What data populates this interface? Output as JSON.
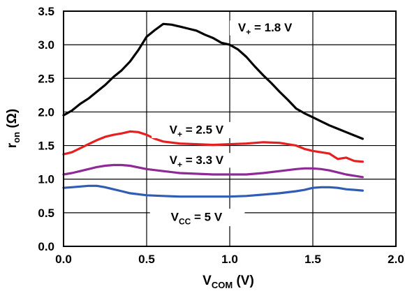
{
  "chart_data": {
    "type": "line",
    "xlabel": {
      "main": "V",
      "sub": "COM",
      "unit": " (V)"
    },
    "ylabel": {
      "main": "r",
      "sub": "on",
      "unit": " (Ω)"
    },
    "xlim": [
      0.0,
      2.0
    ],
    "ylim": [
      0.0,
      3.5
    ],
    "xticks": [
      "0.0",
      "0.5",
      "1.0",
      "1.5",
      "2.0"
    ],
    "yticks": [
      "0.0",
      "0.5",
      "1.0",
      "1.5",
      "2.0",
      "2.5",
      "3.0",
      "3.5"
    ],
    "grid": true,
    "series": [
      {
        "name": "V+ = 1.8 V",
        "color": "#000000",
        "x": [
          0.0,
          0.05,
          0.1,
          0.15,
          0.2,
          0.25,
          0.3,
          0.35,
          0.4,
          0.45,
          0.5,
          0.55,
          0.6,
          0.65,
          0.7,
          0.75,
          0.8,
          0.85,
          0.9,
          0.95,
          1.0,
          1.05,
          1.1,
          1.15,
          1.2,
          1.25,
          1.3,
          1.35,
          1.4,
          1.45,
          1.5,
          1.55,
          1.6,
          1.65,
          1.7,
          1.75,
          1.8
        ],
        "y": [
          1.95,
          2.02,
          2.12,
          2.2,
          2.3,
          2.4,
          2.52,
          2.62,
          2.75,
          2.92,
          3.12,
          3.22,
          3.31,
          3.3,
          3.27,
          3.24,
          3.21,
          3.15,
          3.1,
          3.03,
          3.0,
          2.93,
          2.82,
          2.68,
          2.55,
          2.43,
          2.3,
          2.18,
          2.05,
          1.98,
          1.92,
          1.86,
          1.8,
          1.75,
          1.7,
          1.65,
          1.6
        ]
      },
      {
        "name": "V+ = 2.5 V",
        "color": "#e62020",
        "x": [
          0.0,
          0.05,
          0.1,
          0.15,
          0.2,
          0.25,
          0.3,
          0.35,
          0.4,
          0.45,
          0.5,
          0.55,
          0.6,
          0.7,
          0.8,
          0.9,
          1.0,
          1.1,
          1.2,
          1.3,
          1.4,
          1.45,
          1.5,
          1.55,
          1.6,
          1.65,
          1.7,
          1.75,
          1.8
        ],
        "y": [
          1.37,
          1.4,
          1.46,
          1.52,
          1.58,
          1.63,
          1.66,
          1.68,
          1.71,
          1.7,
          1.66,
          1.6,
          1.56,
          1.53,
          1.52,
          1.51,
          1.52,
          1.53,
          1.55,
          1.54,
          1.5,
          1.45,
          1.42,
          1.4,
          1.38,
          1.3,
          1.32,
          1.27,
          1.26
        ]
      },
      {
        "name": "V+ = 3.3 V",
        "color": "#8e2a96",
        "x": [
          0.0,
          0.05,
          0.1,
          0.15,
          0.2,
          0.25,
          0.3,
          0.35,
          0.4,
          0.5,
          0.6,
          0.7,
          0.8,
          0.9,
          1.0,
          1.1,
          1.2,
          1.3,
          1.4,
          1.45,
          1.5,
          1.55,
          1.6,
          1.65,
          1.7,
          1.75,
          1.8
        ],
        "y": [
          1.07,
          1.09,
          1.12,
          1.15,
          1.18,
          1.2,
          1.21,
          1.21,
          1.2,
          1.15,
          1.12,
          1.09,
          1.08,
          1.07,
          1.07,
          1.07,
          1.09,
          1.12,
          1.15,
          1.16,
          1.16,
          1.15,
          1.13,
          1.1,
          1.07,
          1.05,
          1.03
        ]
      },
      {
        "name": "VCC = 5 V",
        "color": "#2f5db4",
        "x": [
          0.0,
          0.05,
          0.1,
          0.15,
          0.2,
          0.25,
          0.3,
          0.35,
          0.4,
          0.5,
          0.6,
          0.7,
          0.8,
          0.9,
          1.0,
          1.1,
          1.2,
          1.3,
          1.4,
          1.45,
          1.5,
          1.55,
          1.6,
          1.65,
          1.7,
          1.75,
          1.8
        ],
        "y": [
          0.87,
          0.88,
          0.89,
          0.9,
          0.9,
          0.88,
          0.85,
          0.82,
          0.79,
          0.76,
          0.75,
          0.74,
          0.74,
          0.74,
          0.74,
          0.75,
          0.77,
          0.79,
          0.82,
          0.84,
          0.87,
          0.88,
          0.88,
          0.87,
          0.85,
          0.84,
          0.83
        ]
      }
    ],
    "annotations": [
      {
        "main": "V",
        "sub": "+",
        "rest": " = 1.8 V",
        "series": 0
      },
      {
        "main": "V",
        "sub": "+",
        "rest": " = 2.5 V",
        "series": 1
      },
      {
        "main": "V",
        "sub": "+",
        "rest": " = 3.3 V",
        "series": 2
      },
      {
        "main": "V",
        "sub": "CC",
        "rest": " = 5 V",
        "series": 3
      }
    ]
  }
}
